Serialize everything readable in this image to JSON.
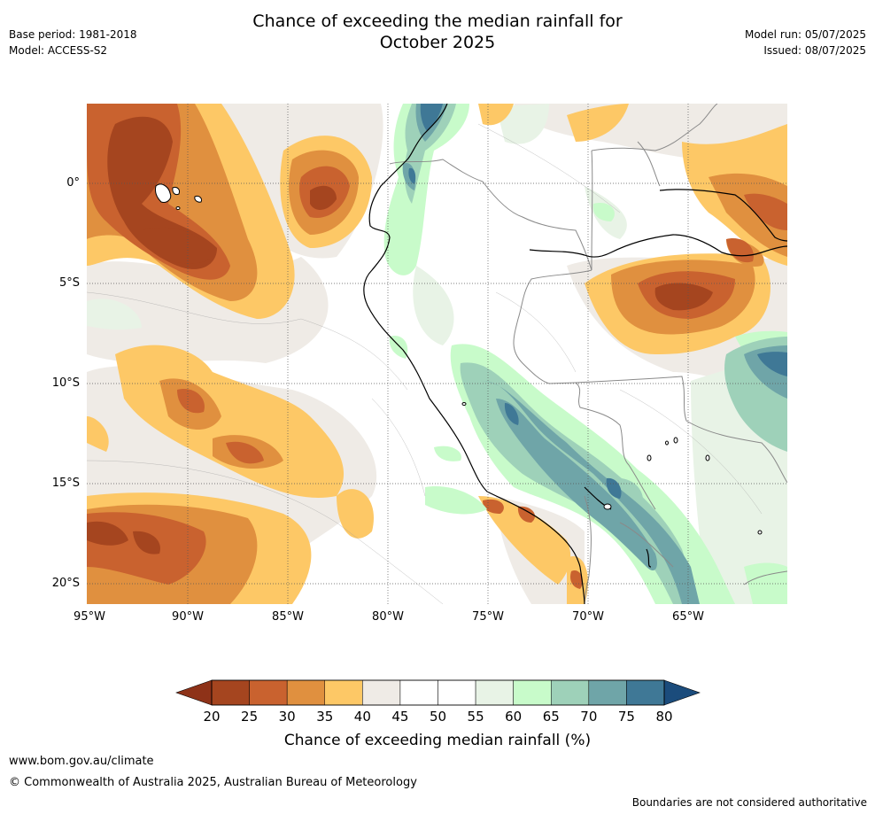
{
  "title": {
    "line1": "Chance of exceeding the median rainfall for",
    "line2": "October 2025"
  },
  "meta": {
    "base_period": "Base period: 1981-2018",
    "model": "Model: ACCESS-S2",
    "model_run": "Model run: 05/07/2025",
    "issued": "Issued: 08/07/2025"
  },
  "map": {
    "lat_labels": [
      "0°",
      "5°S",
      "10°S",
      "15°S",
      "20°S"
    ],
    "lon_labels": [
      "95°W",
      "90°W",
      "85°W",
      "80°W",
      "75°W",
      "70°W",
      "65°W"
    ],
    "colors": {
      "c20_25": "#a5451f",
      "c25_30": "#c9622f",
      "c30_35": "#e0903f",
      "c35_40": "#fdc866",
      "c40_45": "#efebe6",
      "c45_55": "#ffffff",
      "c55_60": "#e8f3e6",
      "c60_65": "#c8fbca",
      "c65_70": "#9ed1b9",
      "c70_75": "#6fa5a8",
      "c75_80": "#3f7896",
      "c80p": "#1b4c7c",
      "c_lt20": "#8e3218"
    }
  },
  "colorbar": {
    "labels": [
      "20",
      "25",
      "30",
      "35",
      "40",
      "45",
      "50",
      "55",
      "60",
      "65",
      "70",
      "75",
      "80"
    ],
    "colors": [
      "#a5451f",
      "#c9622f",
      "#e0903f",
      "#fdc866",
      "#efebe6",
      "#ffffff",
      "#ffffff",
      "#e8f3e6",
      "#c8fbca",
      "#9ed1b9",
      "#6fa5a8",
      "#3f7896"
    ],
    "under_color": "#8e3218",
    "over_color": "#1b4c7c",
    "title": "Chance of exceeding median rainfall (%)"
  },
  "footer": {
    "url": "www.bom.gov.au/climate",
    "copyright": "© Commonwealth of Australia 2025, Australian Bureau of Meteorology",
    "note": "Boundaries are not considered authoritative"
  }
}
